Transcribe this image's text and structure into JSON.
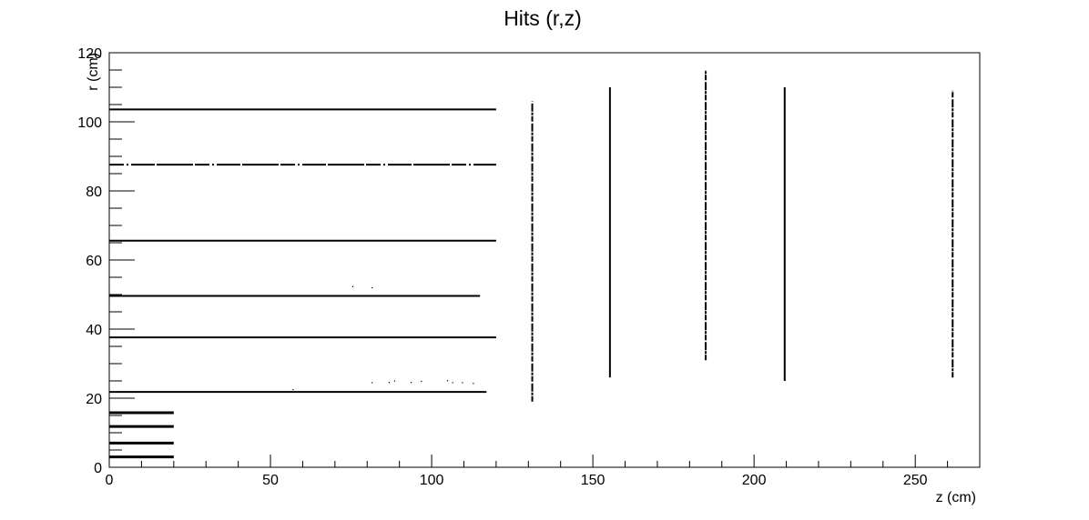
{
  "chart_data": {
    "type": "scatter",
    "title": "Hits (r,z)",
    "xlabel": "z (cm)",
    "ylabel": "r (cm)",
    "xlim": [
      0,
      270
    ],
    "ylim": [
      0,
      120
    ],
    "x_ticks": [
      0,
      50,
      100,
      150,
      200,
      250
    ],
    "y_ticks": [
      0,
      20,
      40,
      60,
      80,
      100,
      120
    ],
    "grid": false,
    "legend": "none",
    "marker_color": "#000000",
    "series": [
      {
        "barrel_layers": [
          {
            "r": 3.0,
            "z": [
              0,
              20
            ]
          },
          {
            "r": 7.0,
            "z": [
              0,
              20
            ]
          },
          {
            "r": 11.8,
            "z": [
              0,
              20
            ]
          },
          {
            "r": 15.8,
            "z": [
              0,
              20
            ]
          },
          {
            "r": 21.8,
            "z": [
              0,
              117
            ]
          },
          {
            "r": 37.6,
            "z": [
              0,
              120
            ]
          },
          {
            "r": 49.6,
            "z": [
              0,
              115
            ]
          },
          {
            "r": 65.6,
            "z": [
              0,
              120
            ]
          },
          {
            "r": 87.6,
            "z": [
              0,
              120
            ],
            "style": "dashed"
          },
          {
            "r": 103.6,
            "z": [
              0,
              120
            ]
          }
        ],
        "endcap_disks": [
          {
            "z": 131.2,
            "r": [
              19,
              106
            ]
          },
          {
            "z": 155.3,
            "r": [
              26,
              110
            ]
          },
          {
            "z": 185.0,
            "r": [
              31,
              115
            ]
          },
          {
            "z": 209.5,
            "r": [
              25,
              110
            ]
          },
          {
            "z": 261.6,
            "r": [
              26,
              109
            ]
          }
        ],
        "scattered_points": [
          [
            57,
            22.5
          ],
          [
            75.5,
            52.3
          ],
          [
            81.5,
            52.0
          ],
          [
            81.5,
            24.5
          ],
          [
            86.8,
            24.6
          ],
          [
            88.5,
            25.0
          ],
          [
            93.6,
            24.6
          ],
          [
            96.8,
            24.9
          ],
          [
            104.9,
            25.1
          ],
          [
            106.5,
            24.5
          ],
          [
            109.5,
            24.5
          ],
          [
            112.9,
            24.3
          ]
        ]
      }
    ]
  }
}
